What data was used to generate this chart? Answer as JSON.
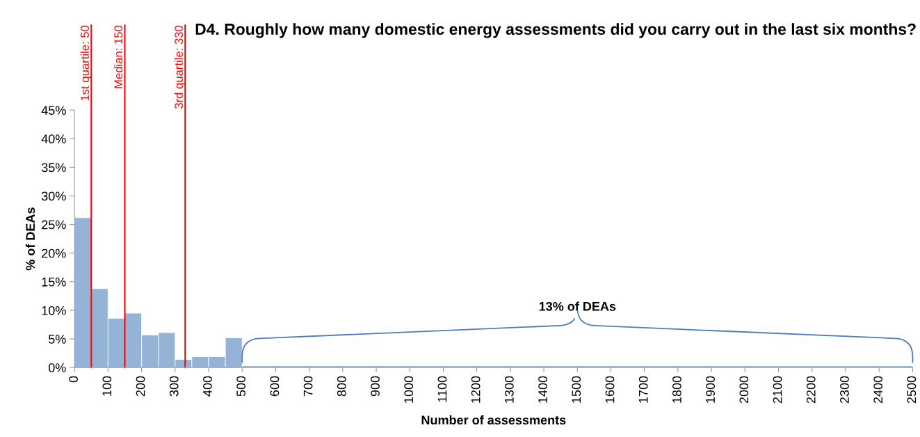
{
  "chart_data": {
    "type": "histogram",
    "title": "D4. Roughly how many domestic energy assessments did you carry out in the last six months?",
    "xlabel": "Number of assessments",
    "ylabel": "% of DEAs",
    "bins": [
      0,
      50,
      100,
      150,
      200,
      250,
      300,
      350,
      400,
      450,
      500,
      2500
    ],
    "values": [
      26.2,
      13.8,
      8.6,
      9.5,
      5.7,
      6.1,
      1.4,
      1.9,
      1.9,
      5.2,
      0.3
    ],
    "color": "#95b3d7",
    "xlim": [
      0,
      2500
    ],
    "xticks": [
      0,
      100,
      200,
      300,
      400,
      500,
      600,
      700,
      800,
      900,
      1000,
      1100,
      1200,
      1300,
      1400,
      1500,
      1600,
      1700,
      1800,
      1900,
      2000,
      2100,
      2200,
      2300,
      2400,
      2500
    ],
    "ylim": [
      0,
      45
    ],
    "yticks": [
      {
        "value": 0,
        "label": "0%"
      },
      {
        "value": 5,
        "label": "5%"
      },
      {
        "value": 10,
        "label": "10%"
      },
      {
        "value": 15,
        "label": "15%"
      },
      {
        "value": 20,
        "label": "20%"
      },
      {
        "value": 25,
        "label": "25%"
      },
      {
        "value": 30,
        "label": "30%"
      },
      {
        "value": 35,
        "label": "35%"
      },
      {
        "value": 40,
        "label": "40%"
      },
      {
        "value": 45,
        "label": "45%"
      }
    ],
    "ref_lines": [
      {
        "axis": "x",
        "value": 50,
        "label": "1st quartile: 50",
        "color": "#ff0000"
      },
      {
        "axis": "x",
        "value": 150,
        "label": "Median: 150",
        "color": "#ff0000"
      },
      {
        "axis": "x",
        "value": 330,
        "label": "3rd quartile: 330",
        "color": "#ff0000"
      }
    ],
    "annotations": [
      "13% of DEAs"
    ],
    "grid": false
  }
}
